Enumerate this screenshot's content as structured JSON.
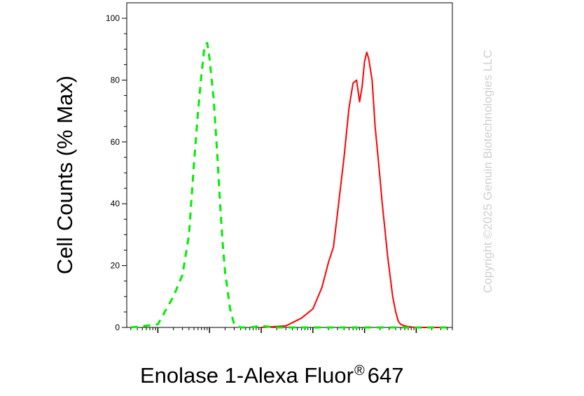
{
  "chart_data": {
    "type": "line",
    "title": "",
    "xlabel_main": "Enolase 1-Alexa Fluor",
    "xlabel_reg": "®",
    "xlabel_tail": "647",
    "ylabel": "Cell Counts (% Max)",
    "xscale": "log",
    "xlim": [
      0.25,
      500000
    ],
    "ylim": [
      0,
      105
    ],
    "y_ticks": [
      0,
      20,
      40,
      60,
      80,
      100
    ],
    "grid": false,
    "legend": "none",
    "series": [
      {
        "color": "#ff0000",
        "style": "solid",
        "x": [
          100,
          300,
          600,
          1000,
          1500,
          2000,
          2500,
          3000,
          4000,
          5000,
          6000,
          7000,
          8000,
          9000,
          10000,
          11000,
          12000,
          14000,
          16000,
          18000,
          20000,
          22000,
          25000,
          28000,
          31000,
          35000,
          40000,
          45000,
          50000,
          60000,
          70000,
          85000,
          100000,
          200000,
          400000
        ],
        "y": [
          0,
          0.5,
          3,
          6,
          13,
          21,
          26,
          37,
          55,
          71,
          79,
          80,
          73,
          78,
          86,
          89,
          87,
          80,
          65,
          56,
          48,
          40,
          31,
          23,
          17,
          10,
          5,
          2,
          1,
          0.5,
          0.3,
          0.1,
          0,
          0,
          0
        ]
      },
      {
        "color": "#00ee00",
        "style": "dashed",
        "x": [
          0.3,
          1,
          2,
          3,
          4,
          5,
          6,
          7,
          8,
          9,
          10,
          12,
          14,
          16,
          18,
          20,
          25,
          30,
          40,
          60,
          100,
          150,
          200,
          1000,
          10000,
          100000,
          500000
        ],
        "y": [
          0,
          1,
          10,
          17,
          30,
          53,
          70,
          82,
          91,
          92,
          87,
          74,
          57,
          40,
          27,
          18,
          6,
          1,
          0,
          0,
          0.5,
          0.2,
          0,
          0,
          0,
          0,
          0
        ]
      }
    ],
    "watermark": "Copyright ©2025 Genuin Biotechnologies LLC"
  }
}
